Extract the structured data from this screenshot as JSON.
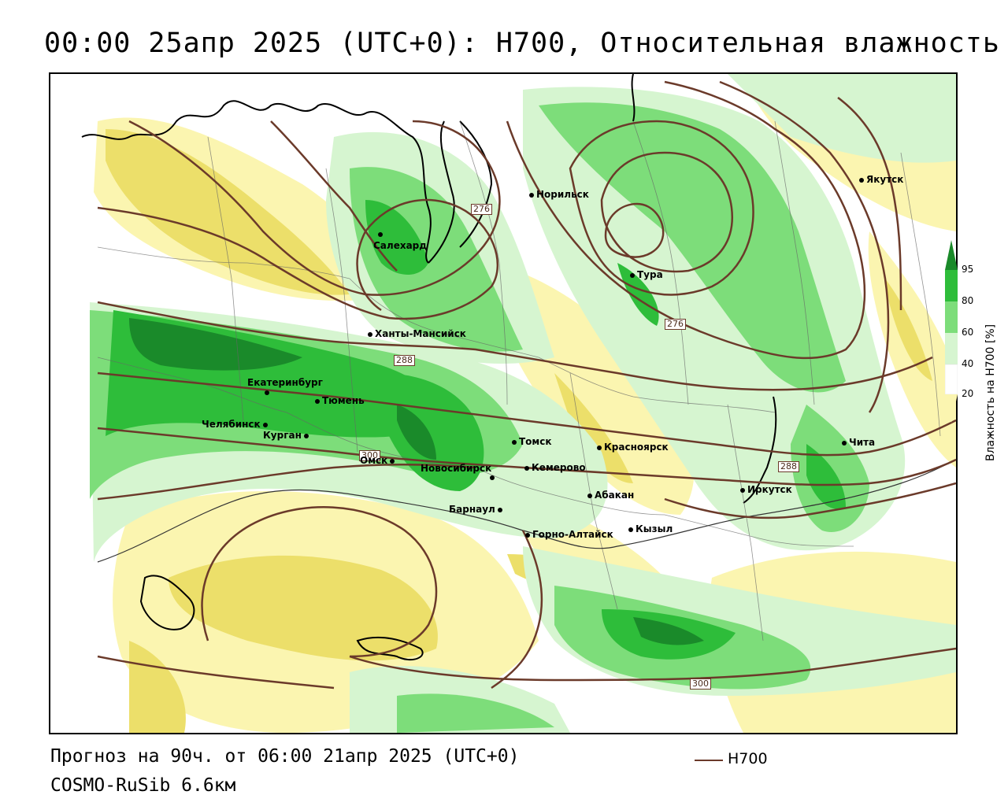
{
  "title": "00:00 25апр 2025 (UTC+0): H700, Относительная влажность",
  "footer": {
    "forecast": "Прогноз на 90ч. от 06:00 21апр 2025 (UTC+0)",
    "model": "COSMO-RuSib 6.6км",
    "legend_label": "H700"
  },
  "colorbar": {
    "title": "Влажность на H700 [%]",
    "ticks": [
      "95",
      "80",
      "60",
      "40",
      "20"
    ],
    "colors": {
      "over95": "#1a8a2a",
      "c80_95": "#2ebd3a",
      "c60_80": "#7ddd7a",
      "c40_60": "#d6f5d0",
      "c20_40": "#ffffff",
      "c_yellow_light": "#fbf5b0",
      "c_yellow": "#ecdf6a",
      "c_yellow_dark": "#d9c93a"
    }
  },
  "contour_labels": [
    "276",
    "276",
    "288",
    "300",
    "288",
    "300"
  ],
  "cities": [
    {
      "name": "Норильск"
    },
    {
      "name": "Якутск"
    },
    {
      "name": "Салехард"
    },
    {
      "name": "Тура"
    },
    {
      "name": "Ханты-Мансийск"
    },
    {
      "name": "Екатеринбург"
    },
    {
      "name": "Тюмень"
    },
    {
      "name": "Челябинск"
    },
    {
      "name": "Курган"
    },
    {
      "name": "Омск"
    },
    {
      "name": "Новосибирск"
    },
    {
      "name": "Томск"
    },
    {
      "name": "Кемерово"
    },
    {
      "name": "Красноярск"
    },
    {
      "name": "Абакан"
    },
    {
      "name": "Барнаул"
    },
    {
      "name": "Горно-Алтайск"
    },
    {
      "name": "Кызыл"
    },
    {
      "name": "Иркутск"
    },
    {
      "name": "Чита"
    }
  ]
}
